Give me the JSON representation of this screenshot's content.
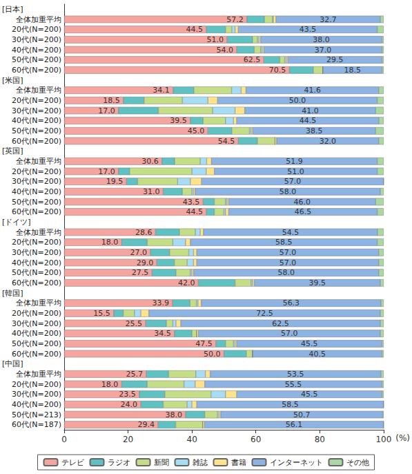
{
  "chart_data": {
    "type": "bar",
    "orientation": "horizontal",
    "stacked": true,
    "grid": false,
    "legend": "bottom",
    "xlabel": "(%)",
    "xlim": [
      0,
      100
    ],
    "xticks": [
      0,
      20,
      40,
      60,
      80,
      100
    ],
    "categories": [
      "[日本]",
      "全体加重平均",
      "20代(N=200)",
      "30代(N=200)",
      "40代(N=200)",
      "50代(N=200)",
      "60代(N=200)",
      "[米国]",
      "全体加重平均",
      "20代(N=200)",
      "30代(N=200)",
      "40代(N=200)",
      "50代(N=200)",
      "60代(N=200)",
      "[英国]",
      "全体加重平均",
      "20代(N=200)",
      "30代(N=200)",
      "40代(N=200)",
      "50代(N=200)",
      "60代(N=200)",
      "[ドイツ]",
      "全体加重平均",
      "20代(N=200)",
      "30代(N=200)",
      "40代(N=200)",
      "50代(N=200)",
      "60代(N=200)",
      "[韓国]",
      "全体加重平均",
      "20代(N=200)",
      "30代(N=200)",
      "40代(N=200)",
      "50代(N=200)",
      "60代(N=200)",
      "[中国]",
      "全体加重平均",
      "20代(N=200)",
      "30代(N=200)",
      "40代(N=200)",
      "50代(N=213)",
      "60代(N=187)"
    ],
    "series": [
      {
        "name": "テレビ",
        "color": "#f4a59f",
        "data_labels": true,
        "values": [
          null,
          57.2,
          44.5,
          51.0,
          54.0,
          62.5,
          70.5,
          null,
          34.1,
          18.5,
          17.0,
          39.5,
          45.0,
          54.5,
          null,
          30.6,
          17.0,
          19.5,
          31.0,
          43.5,
          44.5,
          null,
          28.6,
          18.0,
          27.0,
          29.0,
          27.5,
          42.0,
          null,
          33.9,
          15.5,
          25.5,
          34.5,
          47.5,
          50.0,
          null,
          25.7,
          18.0,
          23.5,
          24.0,
          38.0,
          29.4
        ],
        "value_labels": [
          null,
          "57.2",
          "44.5",
          "51.0",
          "54.0",
          "62.5",
          "70.5",
          null,
          "34.1",
          "18.5",
          "17.0",
          "39.5",
          "45.0",
          "54.5",
          null,
          "30.6",
          "17.0",
          "19.5",
          "31.0",
          "43.5",
          "44.5",
          null,
          "28.6",
          "18.0",
          "27.0",
          "29.0",
          "27.5",
          "42.0",
          null,
          "33.9",
          "15.5",
          "25.5",
          "34.5",
          "47.5",
          "50.0",
          null,
          "25.7",
          "18.0",
          "23.5",
          "24.0",
          "38.0",
          "29.4"
        ]
      },
      {
        "name": "ラジオ",
        "color": "#5fc1c1",
        "values": [
          null,
          5.5,
          6,
          8,
          5.5,
          5,
          7.5,
          null,
          6.5,
          6.5,
          12.5,
          4,
          7.5,
          6,
          null,
          4,
          3.5,
          3.5,
          6,
          3.5,
          2.5,
          null,
          7.5,
          8,
          6,
          5.5,
          7.5,
          11.5,
          null,
          5.5,
          3,
          6.5,
          5.5,
          3,
          7,
          null,
          7,
          8,
          8,
          7,
          6,
          5.5
        ]
      },
      {
        "name": "新聞",
        "color": "#c3de86",
        "values": [
          null,
          2.5,
          2,
          1.5,
          2,
          1.5,
          3,
          null,
          11.8,
          12,
          17,
          7,
          5.5,
          5.5,
          null,
          8,
          19.5,
          12.5,
          3,
          3.5,
          3,
          null,
          5,
          8,
          6,
          4,
          4.5,
          5,
          null,
          2,
          3.5,
          2,
          1.5,
          2.5,
          2,
          null,
          8.5,
          11.5,
          14.5,
          7.5,
          4,
          8.5
        ]
      },
      {
        "name": "雑誌",
        "color": "#a6dcf4",
        "values": [
          null,
          0.3,
          1,
          0.5,
          0.5,
          0.5,
          0,
          null,
          3,
          8,
          7,
          2.5,
          0.5,
          0,
          null,
          2,
          4.5,
          4,
          0.5,
          0.5,
          0.5,
          null,
          1.5,
          4,
          1.5,
          2,
          0.5,
          0.5,
          null,
          0.5,
          2,
          1,
          0,
          0.5,
          0,
          null,
          3,
          3.5,
          4.5,
          1.5,
          0.5,
          0
        ]
      },
      {
        "name": "書籍",
        "color": "#fde48c",
        "values": [
          null,
          0.8,
          1,
          0.5,
          0.5,
          0.5,
          0,
          null,
          1.5,
          3,
          3,
          1,
          0.5,
          0.5,
          null,
          1.5,
          2.5,
          3.5,
          0.5,
          0.5,
          1,
          null,
          1,
          1.5,
          1,
          1,
          0.5,
          0.5,
          null,
          1,
          2.5,
          1.5,
          0.5,
          0.5,
          0,
          null,
          1.5,
          3,
          3.5,
          1.5,
          0.5,
          0.5
        ]
      },
      {
        "name": "インターネット",
        "color": "#8db3e2",
        "data_labels": true,
        "values": [
          null,
          32.7,
          43.5,
          38.0,
          37.0,
          29.5,
          18.5,
          null,
          41.6,
          50.0,
          41.0,
          44.5,
          38.5,
          32.0,
          null,
          51.9,
          51.0,
          57.0,
          58.0,
          46.0,
          46.5,
          null,
          54.5,
          58.5,
          57.0,
          57.0,
          58.0,
          39.5,
          null,
          56.3,
          72.5,
          62.5,
          57.0,
          45.5,
          40.5,
          null,
          53.5,
          55.5,
          45.5,
          58.5,
          50.7,
          56.1
        ],
        "value_labels": [
          null,
          "32.7",
          "43.5",
          "38.0",
          "37.0",
          "29.5",
          "18.5",
          null,
          "41.6",
          "50.0",
          "41.0",
          "44.5",
          "38.5",
          "32.0",
          null,
          "51.9",
          "51.0",
          "57.0",
          "58.0",
          "46.0",
          "46.5",
          null,
          "54.5",
          "58.5",
          "57.0",
          "57.0",
          "58.0",
          "39.5",
          null,
          "56.3",
          "72.5",
          "62.5",
          "57.0",
          "45.5",
          "40.5",
          null,
          "53.5",
          "55.5",
          "45.5",
          "58.5",
          "50.7",
          "56.1"
        ]
      },
      {
        "name": "その他",
        "color": "#a9d9a0",
        "values": [
          null,
          1.0,
          2.0,
          0.5,
          0.5,
          0.5,
          0.5,
          null,
          1.5,
          2,
          2.5,
          1.5,
          2.5,
          1.5,
          null,
          2,
          2,
          0,
          1,
          2.5,
          2,
          null,
          1.9,
          2,
          1.5,
          1.5,
          1.5,
          1,
          null,
          0.8,
          1,
          1,
          1,
          0.5,
          0.5,
          null,
          0.8,
          0.5,
          0.5,
          0,
          0.3,
          0
        ]
      }
    ]
  }
}
